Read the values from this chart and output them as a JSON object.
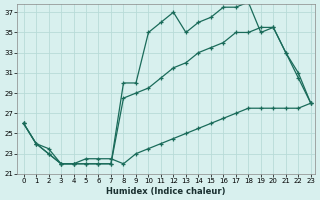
{
  "xlabel": "Humidex (Indice chaleur)",
  "bg_color": "#d8f0ee",
  "grid_color": "#b8dbd8",
  "line_color": "#1a6b5a",
  "xlim": [
    -0.5,
    23.3
  ],
  "ylim": [
    21,
    37.8
  ],
  "yticks": [
    21,
    23,
    25,
    27,
    29,
    31,
    33,
    35,
    37
  ],
  "xticks": [
    0,
    1,
    2,
    3,
    4,
    5,
    6,
    7,
    8,
    9,
    10,
    11,
    12,
    13,
    14,
    15,
    16,
    17,
    18,
    19,
    20,
    21,
    22,
    23
  ],
  "line1_x": [
    0,
    1,
    2,
    3,
    4,
    5,
    6,
    7,
    8,
    9,
    10,
    11,
    12,
    13,
    14,
    15,
    16,
    17,
    18,
    19,
    20,
    21,
    22,
    23
  ],
  "line1_y": [
    26,
    24,
    23,
    22,
    22,
    22,
    22,
    22,
    30,
    30,
    35,
    36,
    37,
    35,
    36,
    36.5,
    37.5,
    37.5,
    38,
    35,
    35.5,
    33,
    30.5,
    28
  ],
  "line2_x": [
    0,
    1,
    2,
    3,
    4,
    5,
    6,
    7,
    8,
    9,
    10,
    11,
    12,
    13,
    14,
    15,
    16,
    17,
    18,
    19,
    20,
    21,
    22,
    23
  ],
  "line2_y": [
    26,
    24,
    23,
    22,
    22,
    22,
    22,
    22,
    28.5,
    29,
    29.5,
    30.5,
    31.5,
    32,
    33,
    33.5,
    34,
    35,
    35,
    35.5,
    35.5,
    33,
    31,
    28
  ],
  "line3_x": [
    0,
    1,
    2,
    3,
    4,
    5,
    6,
    7,
    8,
    9,
    10,
    11,
    12,
    13,
    14,
    15,
    16,
    17,
    18,
    19,
    20,
    21,
    22,
    23
  ],
  "line3_y": [
    26,
    24,
    23.5,
    22,
    22,
    22.5,
    22.5,
    22.5,
    22,
    23,
    23.5,
    24,
    24.5,
    25,
    25.5,
    26,
    26.5,
    27,
    27.5,
    27.5,
    27.5,
    27.5,
    27.5,
    28
  ]
}
